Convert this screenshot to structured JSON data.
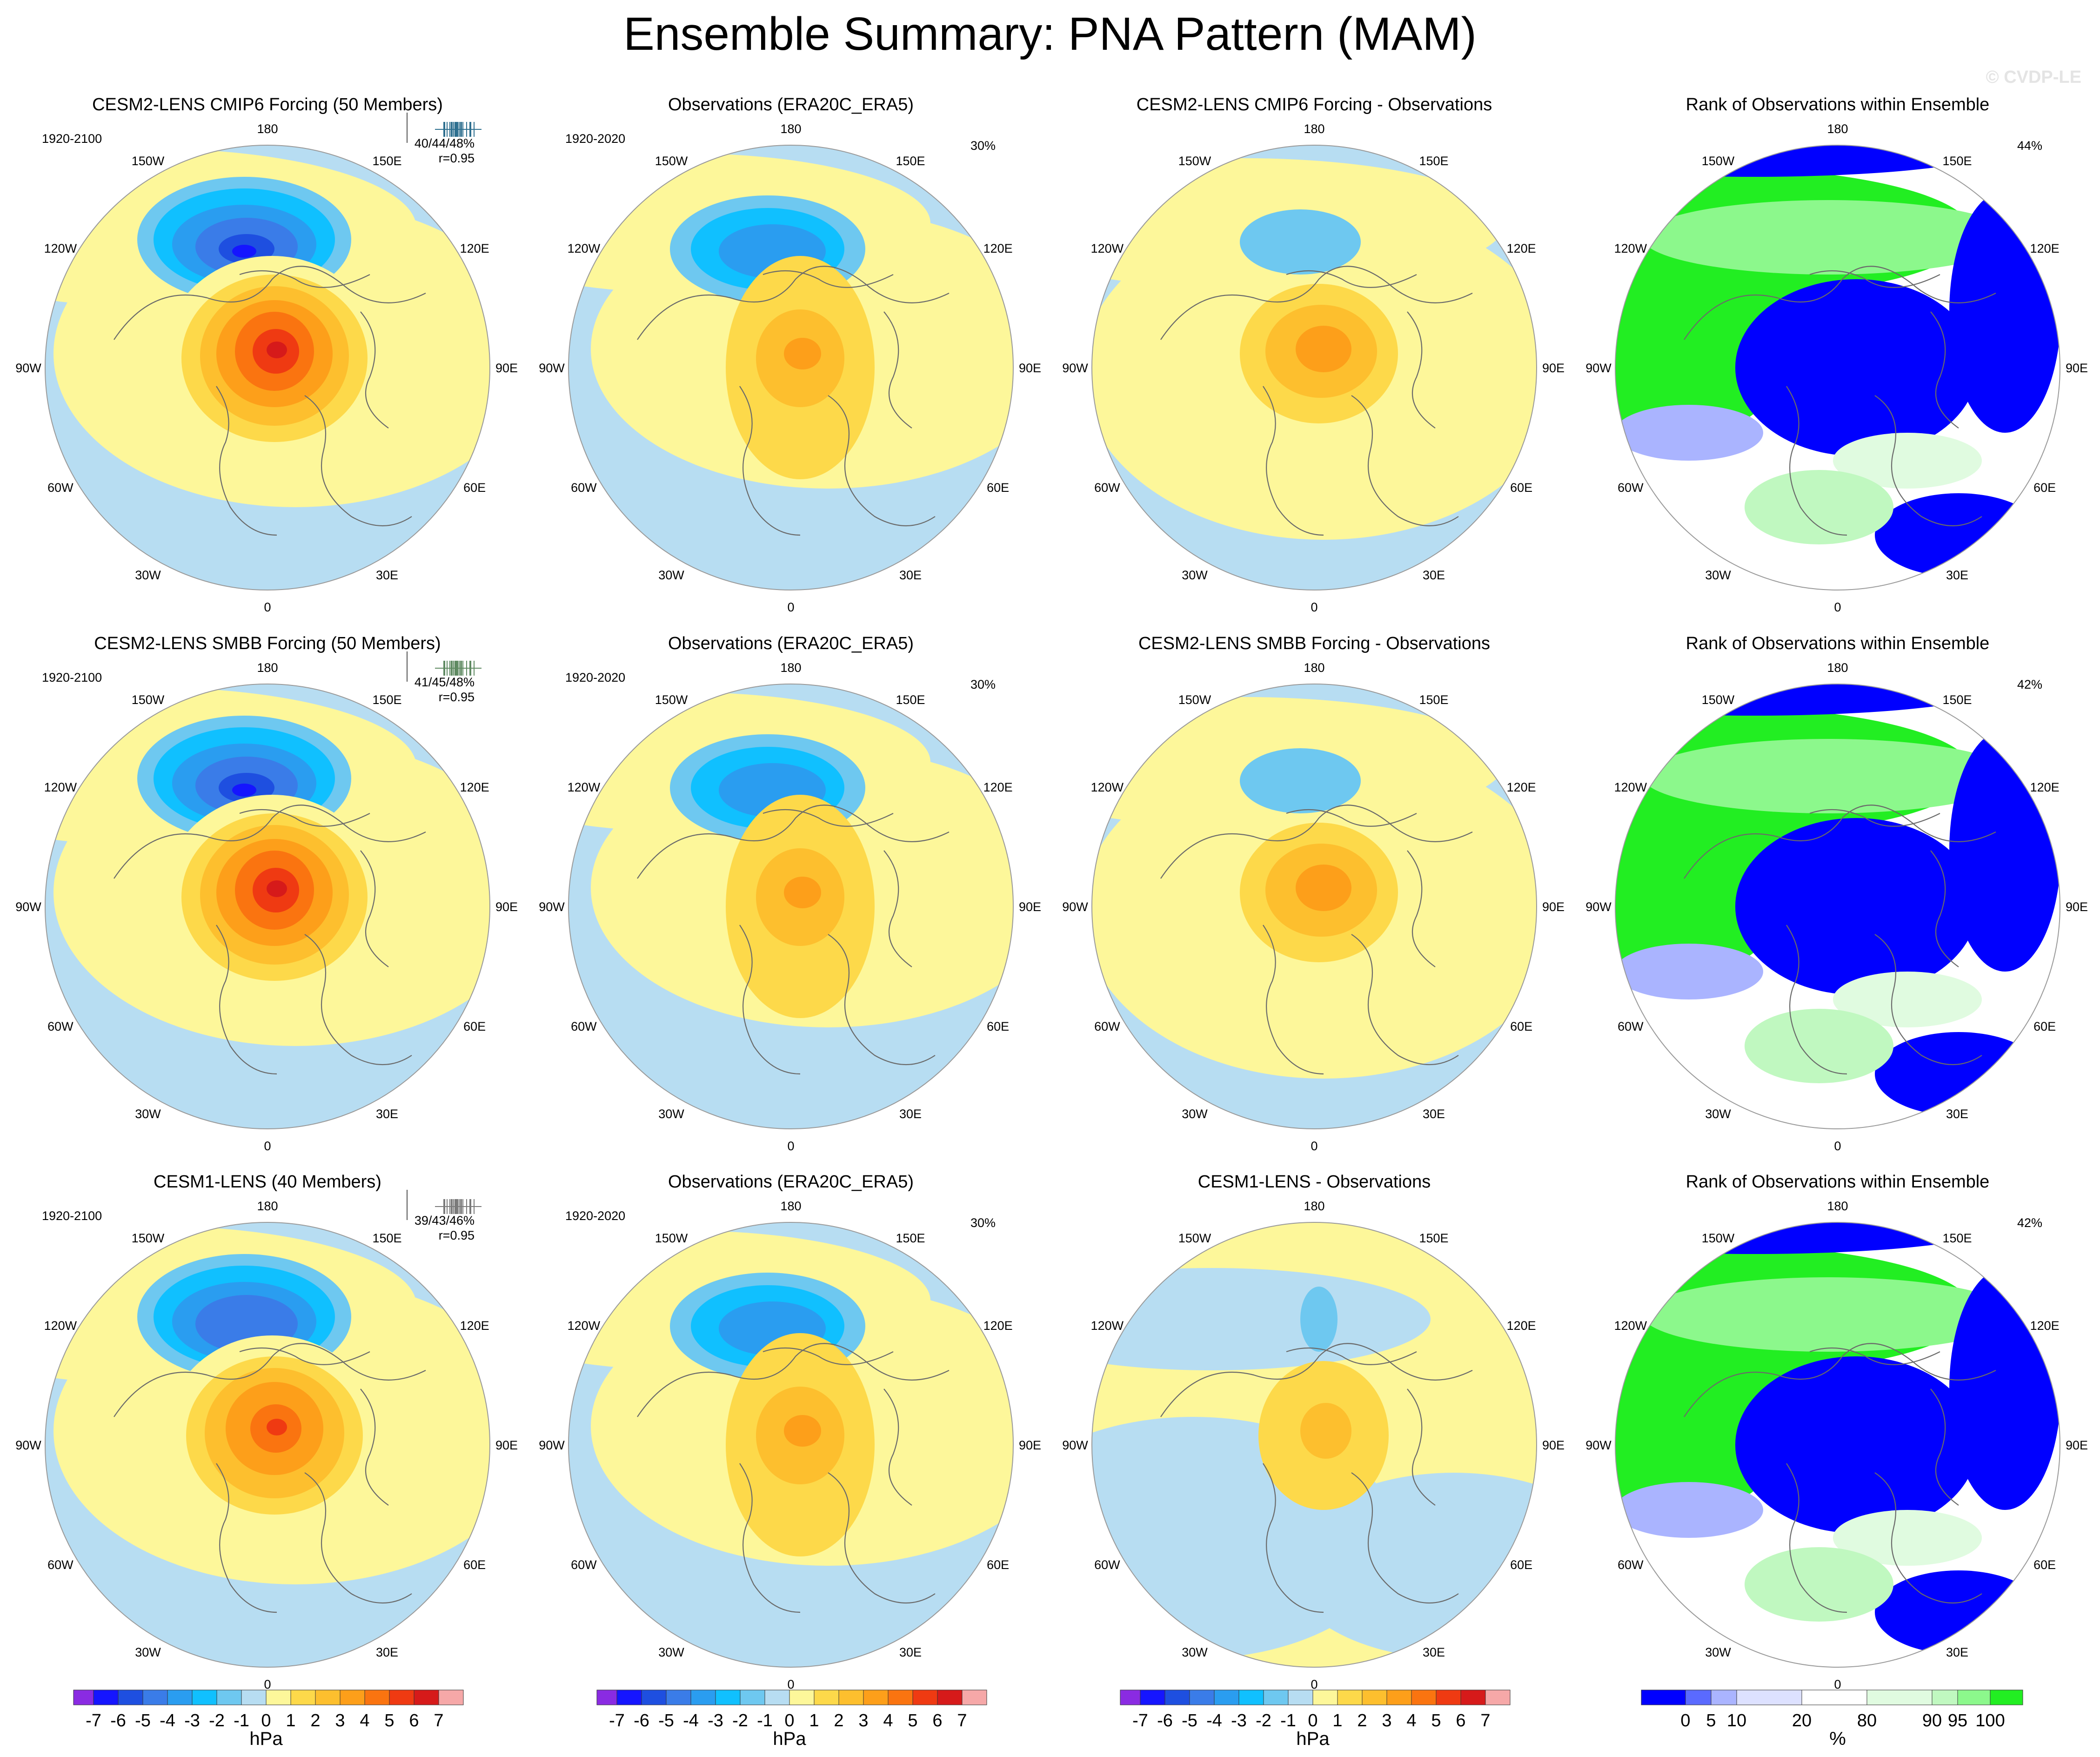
{
  "title": "Ensemble Summary: PNA Pattern (MAM)",
  "watermark": "© CVDP-LE",
  "lon_labels": [
    "180",
    "150E",
    "120E",
    "90E",
    "60E",
    "30E",
    "0",
    "30W",
    "60W",
    "90W",
    "120W",
    "150W"
  ],
  "colors": {
    "ensemble_title_cmip6": "#2e6f8f",
    "ensemble_title_smbb": "#5f8a62",
    "ensemble_title_cesm1": "#7a7a7a",
    "hpa_scale": [
      "#8a2be2",
      "#1515ff",
      "#1e4fe0",
      "#3a7ce8",
      "#2a9df0",
      "#10c0ff",
      "#6ec8f0",
      "#b7ddf2",
      "#fdf79a",
      "#fdd94a",
      "#fdbf2e",
      "#fd9f1a",
      "#fa7410",
      "#ef3a12",
      "#d61a1a",
      "#f6a8a8"
    ],
    "rank_scale": [
      "#0000ff",
      "#5a6aff",
      "#aab4ff",
      "#dde1ff",
      "#ffffff",
      "#e0fbe0",
      "#c0f8c0",
      "#8cf88c",
      "#22ee22"
    ]
  },
  "colorbars": {
    "hpa": {
      "labels": [
        "-7",
        "-6",
        "-5",
        "-4",
        "-3",
        "-2",
        "-1",
        "0",
        "1",
        "2",
        "3",
        "4",
        "5",
        "6",
        "7"
      ],
      "unit": "hPa"
    },
    "rank": {
      "labels": [
        "0",
        "5",
        "10",
        "20",
        "80",
        "90",
        "95",
        "100"
      ],
      "unit": "%"
    }
  },
  "rows": [
    {
      "ensemble": {
        "title": "CESM2-LENS CMIP6 Forcing (50 Members)",
        "period": "1920-2100",
        "pct": "40/44/48%",
        "r": "r=0.95"
      },
      "observations": {
        "title": "Observations (ERA20C_ERA5)",
        "period": "1920-2020",
        "pct": "30%"
      },
      "difference": {
        "title": "CESM2-LENS CMIP6 Forcing - Observations"
      },
      "rank": {
        "title": "Rank of Observations within Ensemble",
        "pct": "44%"
      }
    },
    {
      "ensemble": {
        "title": "CESM2-LENS SMBB Forcing (50 Members)",
        "period": "1920-2100",
        "pct": "41/45/48%",
        "r": "r=0.95"
      },
      "observations": {
        "title": "Observations (ERA20C_ERA5)",
        "period": "1920-2020",
        "pct": "30%"
      },
      "difference": {
        "title": "CESM2-LENS SMBB Forcing - Observations"
      },
      "rank": {
        "title": "Rank of Observations within Ensemble",
        "pct": "42%"
      }
    },
    {
      "ensemble": {
        "title": "CESM1-LENS (40 Members)",
        "period": "1920-2100",
        "pct": "39/43/46%",
        "r": "r=0.95"
      },
      "observations": {
        "title": "Observations (ERA20C_ERA5)",
        "period": "1920-2020",
        "pct": "30%"
      },
      "difference": {
        "title": "CESM1-LENS - Observations"
      },
      "rank": {
        "title": "Rank of Observations within Ensemble",
        "pct": "42%"
      }
    }
  ]
}
